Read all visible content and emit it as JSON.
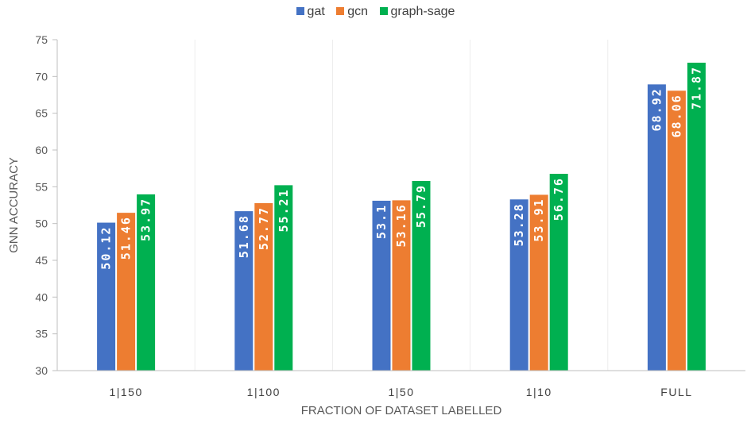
{
  "chart_data": {
    "type": "bar",
    "categories": [
      "1|150",
      "1|100",
      "1|50",
      "1|10",
      "FULL"
    ],
    "series": [
      {
        "name": "gat",
        "color": "#4472C4",
        "values": [
          50.12,
          51.68,
          53.1,
          53.28,
          68.92
        ],
        "labels": [
          "50.12",
          "51.68",
          "53.1",
          "53.28",
          "68.92"
        ]
      },
      {
        "name": "gcn",
        "color": "#ED7D31",
        "values": [
          51.46,
          52.77,
          53.16,
          53.91,
          68.06
        ],
        "labels": [
          "51.46",
          "52.77",
          "53.16",
          "53.91",
          "68.06"
        ]
      },
      {
        "name": "graph-sage",
        "color": "#00B050",
        "values": [
          53.97,
          55.21,
          55.79,
          56.76,
          71.87
        ],
        "labels": [
          "53.97",
          "55.21",
          "55.79",
          "56.76",
          "71.87"
        ]
      }
    ],
    "xlabel": "FRACTION OF DATASET LABELLED",
    "ylabel": "GNN ACCURACY",
    "ylim": [
      30,
      75
    ],
    "yticks": [
      30,
      35,
      40,
      45,
      50,
      55,
      60,
      65,
      70,
      75
    ],
    "legend_position": "top",
    "grid": "vertical separators"
  }
}
